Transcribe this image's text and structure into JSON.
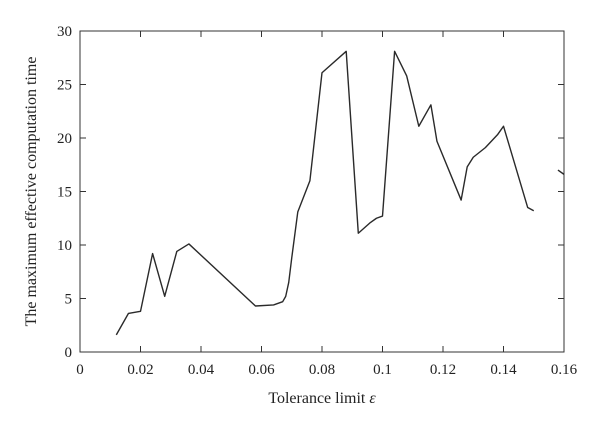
{
  "chart_data": {
    "type": "line",
    "title": "",
    "xlabel": "Tolerance limit ",
    "xlabel_symbol": "ε",
    "ylabel": "The maximum effective computation time",
    "xlim": [
      0,
      0.16
    ],
    "ylim": [
      0,
      30
    ],
    "xticks": [
      "0",
      "0.02",
      "0.04",
      "0.06",
      "0.08",
      "0.1",
      "0.12",
      "0.14",
      "0.16"
    ],
    "yticks": [
      "0",
      "5",
      "10",
      "15",
      "20",
      "25",
      "30"
    ],
    "grid": false,
    "legend": "none",
    "series": [
      {
        "x": [
          0.012,
          0.016,
          0.02,
          0.024,
          0.028,
          0.032,
          0.036,
          0.058,
          0.064,
          0.067,
          0.068,
          0.069,
          0.07,
          0.072,
          0.076,
          0.08,
          0.088,
          0.092,
          0.096,
          0.098,
          0.1,
          0.104,
          0.108,
          0.112,
          0.116,
          0.118,
          0.126,
          0.128,
          0.13,
          0.134,
          0.138,
          0.14,
          0.148,
          0.15
        ],
        "y": [
          1.6,
          3.6,
          3.8,
          9.2,
          5.2,
          9.4,
          10.1,
          4.3,
          4.4,
          4.7,
          5.2,
          6.5,
          8.8,
          13.1,
          16.0,
          26.1,
          28.1,
          11.1,
          12.1,
          12.5,
          12.7,
          28.1,
          25.8,
          21.1,
          23.1,
          19.7,
          14.2,
          17.3,
          18.2,
          19.1,
          20.3,
          21.1,
          13.5,
          13.2
        ]
      },
      {
        "x": [
          0.158,
          0.16
        ],
        "y": [
          17.0,
          16.6
        ]
      }
    ]
  }
}
